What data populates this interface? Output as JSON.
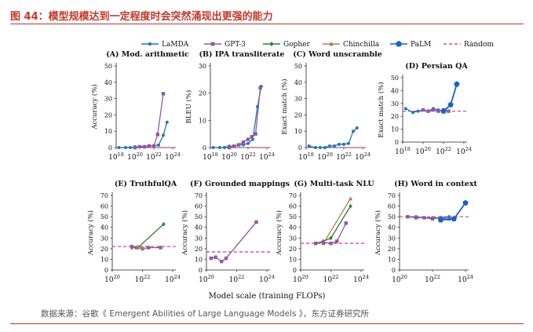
{
  "header": {
    "title": "图 44：模型规模达到一定程度时会突然涌现出更强的能力"
  },
  "source": {
    "text": "数据来源：谷歌《 Emergent Abilities of Large Language Models 》，东方证券研究所"
  },
  "colors": {
    "lamda": "#1f77b4",
    "gpt3": "#8e5aa0",
    "gopher": "#2e7d32",
    "chinchilla": "#b07f56",
    "palm": "#1565c0",
    "random": "#e0488b",
    "title": "#c0392b"
  },
  "chart_data": [
    {
      "type": "line",
      "title": "(A) Mod. arithmetic",
      "ylabel": "Accuracy (%)",
      "ylim": [
        0,
        50
      ],
      "yticks": [
        0,
        10,
        20,
        30,
        40,
        50
      ],
      "xlog": [
        18,
        24
      ],
      "xticks": [
        18,
        20,
        22,
        24
      ],
      "random": 0,
      "series": [
        {
          "key": "lamda",
          "name": "LaMDA",
          "x": [
            18.3,
            19.0,
            19.5,
            20.0,
            20.5,
            21.0,
            21.5,
            22.0,
            22.5,
            23.0,
            23.4
          ],
          "y": [
            0,
            0,
            0,
            0.5,
            0.5,
            0.5,
            1,
            1,
            1.5,
            7.5,
            15.5
          ]
        },
        {
          "key": "gpt3",
          "name": "GPT-3",
          "x": [
            20.0,
            20.5,
            21.0,
            21.5,
            22.0,
            22.4,
            23.0
          ],
          "y": [
            0,
            0.5,
            0.5,
            1,
            1,
            8,
            33
          ]
        }
      ]
    },
    {
      "type": "line",
      "title": "(B) IPA transliterate",
      "ylabel": "BLEU (%)",
      "ylim": [
        0,
        30
      ],
      "yticks": [
        0,
        10,
        20,
        30
      ],
      "xlog": [
        18,
        24
      ],
      "xticks": [
        18,
        20,
        22,
        24
      ],
      "random": 0,
      "series": [
        {
          "key": "lamda",
          "name": "LaMDA",
          "x": [
            18.3,
            19.0,
            19.5,
            20.0,
            20.5,
            21.0,
            21.5,
            22.0,
            22.5,
            23.0,
            23.4
          ],
          "y": [
            0,
            0,
            0,
            0.5,
            0.5,
            1,
            1,
            1.5,
            3,
            15,
            22.5
          ]
        },
        {
          "key": "gpt3",
          "name": "GPT-3",
          "x": [
            20.0,
            20.5,
            21.0,
            21.5,
            22.0,
            22.4,
            22.8,
            23.3
          ],
          "y": [
            0,
            0.5,
            1,
            2,
            3,
            4,
            5,
            22
          ]
        }
      ]
    },
    {
      "type": "line",
      "title": "(C) Word unscramble",
      "ylabel": "Exact match (%)",
      "ylim": [
        0,
        50
      ],
      "yticks": [
        0,
        10,
        20,
        30,
        40,
        50
      ],
      "xlog": [
        18,
        24
      ],
      "xticks": [
        18,
        20,
        22,
        24
      ],
      "random": 0,
      "series": [
        {
          "key": "lamda",
          "name": "LaMDA",
          "x": [
            18.3,
            19.0,
            19.5,
            20.0,
            20.5,
            21.0,
            21.5,
            22.0,
            22.5,
            23.0,
            23.4
          ],
          "y": [
            1,
            0,
            0,
            0,
            1,
            1,
            2,
            2,
            2.5,
            10,
            12
          ]
        }
      ]
    },
    {
      "type": "line",
      "title": "(D) Persian QA",
      "ylabel": "Exact match (%)",
      "ylim": [
        0,
        50
      ],
      "yticks": [
        0,
        10,
        20,
        30,
        40,
        50
      ],
      "xlog": [
        18,
        24
      ],
      "xticks": [
        18,
        20,
        22,
        24
      ],
      "random": 24,
      "series": [
        {
          "key": "lamda",
          "name": "LaMDA",
          "x": [
            18.3,
            19.0,
            19.5,
            20.0,
            20.5,
            21.0,
            21.5,
            22.0,
            22.5
          ],
          "y": [
            26,
            23,
            24,
            25,
            24,
            26,
            25,
            24,
            24
          ]
        },
        {
          "key": "gpt3",
          "name": "GPT-3",
          "x": [
            20.0,
            20.5,
            21.0,
            21.5,
            22.0,
            22.5
          ],
          "y": [
            25,
            24,
            25,
            24,
            25,
            24
          ]
        },
        {
          "key": "palm",
          "name": "PaLM",
          "x": [
            22.0,
            22.7,
            23.3
          ],
          "y": [
            24,
            29,
            45
          ]
        }
      ]
    },
    {
      "type": "line",
      "title": "(E) TruthfulQA",
      "ylabel": "Accuracy (%)",
      "ylim": [
        0,
        70
      ],
      "yticks": [
        0,
        10,
        20,
        30,
        40,
        50,
        60,
        70
      ],
      "xlog": [
        20,
        24
      ],
      "xticks": [
        20,
        22,
        24
      ],
      "random": 22,
      "series": [
        {
          "key": "gopher",
          "name": "Gopher",
          "x": [
            21.3,
            21.7,
            23.4
          ],
          "y": [
            21,
            21,
            43
          ]
        },
        {
          "key": "gpt3",
          "name": "GPT-3",
          "x": [
            21.3,
            21.6,
            22.0,
            22.4,
            23.2
          ],
          "y": [
            22,
            21,
            20,
            21,
            21
          ]
        },
        {
          "key": "chinchilla",
          "name": "Chinchilla",
          "x": [
            21.7,
            22.0
          ],
          "y": [
            22,
            21
          ]
        }
      ]
    },
    {
      "type": "line",
      "title": "(F) Grounded mappings",
      "ylabel": "Accuracy (%)",
      "ylim": [
        0,
        70
      ],
      "yticks": [
        0,
        10,
        20,
        30,
        40,
        50,
        60,
        70
      ],
      "xlog": [
        20,
        24
      ],
      "xticks": [
        20,
        22,
        24
      ],
      "random": 17,
      "series": [
        {
          "key": "gpt3",
          "name": "GPT-3",
          "x": [
            20.3,
            20.6,
            21.0,
            21.3,
            23.3
          ],
          "y": [
            11,
            12,
            8,
            11,
            45
          ]
        }
      ]
    },
    {
      "type": "line",
      "title": "(G) Multi-task NLU",
      "ylabel": "Accuracy (%)",
      "ylim": [
        0,
        70
      ],
      "yticks": [
        0,
        10,
        20,
        30,
        40,
        50,
        60,
        70
      ],
      "xlog": [
        20,
        24
      ],
      "xticks": [
        20,
        22,
        24
      ],
      "random": 25,
      "series": [
        {
          "key": "gopher",
          "name": "Gopher",
          "x": [
            21.0,
            21.5,
            22.0,
            23.3
          ],
          "y": [
            25,
            27,
            30,
            60
          ]
        },
        {
          "key": "chinchilla",
          "name": "Chinchilla",
          "x": [
            21.5,
            23.3
          ],
          "y": [
            25,
            67
          ]
        },
        {
          "key": "gpt3",
          "name": "GPT-3",
          "x": [
            21.0,
            21.5,
            22.0,
            22.4,
            23.0
          ],
          "y": [
            25,
            26,
            25,
            27,
            44
          ]
        }
      ]
    },
    {
      "type": "line",
      "title": "(H) Word in context",
      "ylabel": "Accuracy (%)",
      "ylim": [
        0,
        70
      ],
      "yticks": [
        0,
        10,
        20,
        30,
        40,
        50,
        60,
        70
      ],
      "xlog": [
        20,
        24
      ],
      "xticks": [
        20,
        22,
        24
      ],
      "random": 50,
      "series": [
        {
          "key": "lamda",
          "name": "LaMDA",
          "x": [
            20.5,
            21.0,
            21.5,
            22.0,
            22.5,
            23.0
          ],
          "y": [
            50,
            50,
            49,
            49,
            49,
            50
          ]
        },
        {
          "key": "gpt3",
          "name": "GPT-3",
          "x": [
            20.5,
            21.0,
            21.5,
            22.0,
            22.5,
            23.0
          ],
          "y": [
            50,
            49,
            49,
            48,
            49,
            48
          ]
        },
        {
          "key": "palm",
          "name": "PaLM",
          "x": [
            22.5,
            23.3,
            24.0
          ],
          "y": [
            47,
            48,
            63
          ]
        }
      ]
    }
  ],
  "legend": [
    {
      "key": "lamda",
      "label": "LaMDA",
      "marker": "circle"
    },
    {
      "key": "gpt3",
      "label": "GPT-3",
      "marker": "square"
    },
    {
      "key": "gopher",
      "label": "Gopher",
      "marker": "diamond"
    },
    {
      "key": "chinchilla",
      "label": "Chinchilla",
      "marker": "triangle"
    },
    {
      "key": "palm",
      "label": "PaLM",
      "marker": "pentagon"
    },
    {
      "key": "random",
      "label": "Random",
      "marker": "dash"
    }
  ],
  "xaxis_label": "Model scale (training FLOPs)"
}
